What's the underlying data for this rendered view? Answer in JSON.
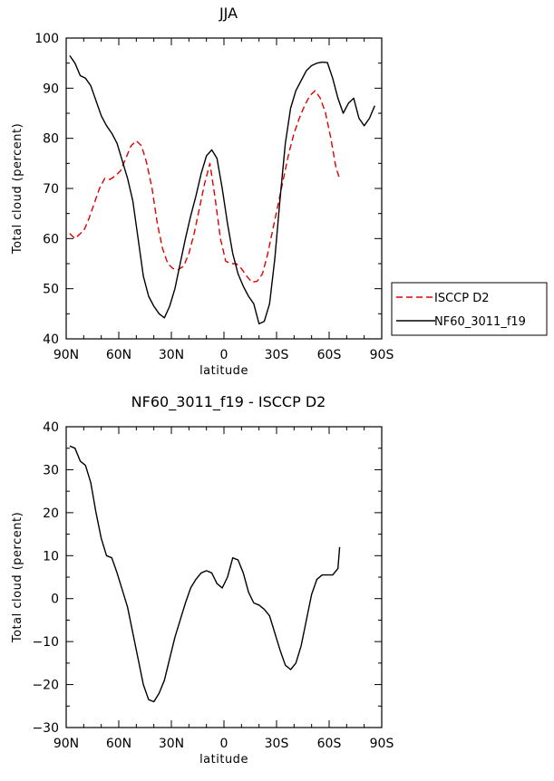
{
  "chart_data": [
    {
      "type": "line",
      "title": "JJA",
      "xlabel": "latitude",
      "ylabel": "Total cloud (percent)",
      "xlim": [
        90,
        -90
      ],
      "ylim": [
        40,
        100
      ],
      "xticks": [
        90,
        60,
        30,
        0,
        -30,
        -60,
        -90
      ],
      "xtick_labels": [
        "90N",
        "60N",
        "30N",
        "0",
        "30S",
        "60S",
        "90S"
      ],
      "yticks": [
        40,
        50,
        60,
        70,
        80,
        90,
        100
      ],
      "ytick_labels": [
        "40",
        "50",
        "60",
        "70",
        "80",
        "90",
        "100"
      ],
      "legend_position": "right",
      "series": [
        {
          "name": "ISCCP D2",
          "color": "#e00000",
          "dash": "dashed",
          "x": [
            88,
            85,
            82,
            80,
            77,
            74,
            71,
            68,
            65,
            62,
            59,
            56,
            53,
            50,
            47,
            44,
            41,
            38,
            35,
            32,
            29,
            26,
            23,
            20,
            17,
            14,
            11,
            8,
            5,
            2,
            -1,
            -4,
            -7,
            -10,
            -13,
            -16,
            -19,
            -22,
            -25,
            -28,
            -31,
            -34,
            -37,
            -40,
            -43,
            -46,
            -49,
            -52,
            -55,
            -58,
            -61,
            -64,
            -66
          ],
          "y": [
            61,
            60,
            61,
            61.5,
            64,
            67,
            70,
            72,
            71.8,
            72.5,
            73.5,
            76,
            78.5,
            79.5,
            78.5,
            75,
            70,
            63,
            58,
            55,
            54,
            53.8,
            54.5,
            57,
            61,
            66,
            71,
            75,
            68,
            60,
            55.5,
            55,
            55,
            54,
            52.5,
            51.3,
            51.5,
            53,
            57,
            62,
            67,
            72,
            77,
            81,
            84,
            86.5,
            88.5,
            89.5,
            88,
            85,
            80,
            74,
            72
          ]
        },
        {
          "name": "NF60_3011_f19",
          "color": "#000000",
          "dash": "solid",
          "x": [
            88,
            85,
            82,
            79,
            76,
            73,
            70,
            67,
            64,
            61,
            58,
            55,
            52,
            49,
            46,
            43,
            40,
            37,
            34,
            31,
            28,
            25,
            22,
            19,
            16,
            13,
            10,
            7,
            4,
            1,
            -2,
            -5,
            -8,
            -11,
            -14,
            -17,
            -20,
            -23,
            -26,
            -29,
            -32,
            -35,
            -38,
            -41,
            -44,
            -47,
            -50,
            -53,
            -56,
            -59,
            -62,
            -65,
            -68,
            -71,
            -74,
            -77,
            -80,
            -83,
            -86
          ],
          "y": [
            96.5,
            95,
            92.5,
            92,
            90.5,
            87.5,
            84.5,
            82.5,
            81,
            79,
            75.5,
            72,
            67.5,
            60,
            52.5,
            48.5,
            46.5,
            45,
            44.2,
            46.5,
            50,
            55,
            60,
            64.5,
            68.5,
            73,
            76.5,
            77.7,
            76,
            70,
            63,
            57,
            53,
            50.5,
            48.5,
            47,
            43,
            43.5,
            47,
            56,
            68,
            79,
            86,
            89.5,
            91.5,
            93.5,
            94.5,
            95,
            95.2,
            95.1,
            92,
            88,
            85,
            87,
            88,
            84,
            82.5,
            84,
            86.5
          ]
        }
      ]
    },
    {
      "type": "line",
      "title": "NF60_3011_f19 - ISCCP D2",
      "xlabel": "latitude",
      "ylabel": "Total cloud (percent)",
      "xlim": [
        90,
        -90
      ],
      "ylim": [
        -30,
        40
      ],
      "xticks": [
        90,
        60,
        30,
        0,
        -30,
        -60,
        -90
      ],
      "xtick_labels": [
        "90N",
        "60N",
        "30N",
        "0",
        "30S",
        "60S",
        "90S"
      ],
      "yticks": [
        -30,
        -20,
        -10,
        0,
        10,
        20,
        30,
        40
      ],
      "ytick_labels": [
        "−30",
        "−20",
        "−10",
        "0",
        "10",
        "20",
        "30",
        "40"
      ],
      "series": [
        {
          "name": "",
          "color": "#000000",
          "dash": "solid",
          "x": [
            88,
            85,
            82,
            79,
            76,
            73,
            70,
            67,
            64,
            61,
            58,
            55,
            52,
            49,
            46,
            43,
            40,
            37,
            34,
            31,
            28,
            25,
            22,
            19,
            16,
            13,
            10,
            7,
            4,
            1,
            -2,
            -5,
            -8,
            -11,
            -14,
            -17,
            -20,
            -23,
            -26,
            -29,
            -32,
            -35,
            -38,
            -41,
            -44,
            -47,
            -50,
            -53,
            -56,
            -59,
            -62,
            -65,
            -66
          ],
          "y": [
            35.5,
            35,
            32,
            31,
            27,
            20,
            14,
            10,
            9.5,
            6,
            2,
            -2,
            -8,
            -14,
            -20,
            -23.5,
            -24,
            -22,
            -19,
            -14,
            -9,
            -5,
            -1,
            2.5,
            4.5,
            6,
            6.5,
            6,
            3.5,
            2.5,
            5,
            9.5,
            9,
            6,
            1.5,
            -1,
            -1.5,
            -2.5,
            -4,
            -8,
            -12,
            -15.5,
            -16.5,
            -15,
            -11,
            -5,
            1,
            4.5,
            5.5,
            5.5,
            5.5,
            7,
            12
          ]
        }
      ]
    }
  ]
}
